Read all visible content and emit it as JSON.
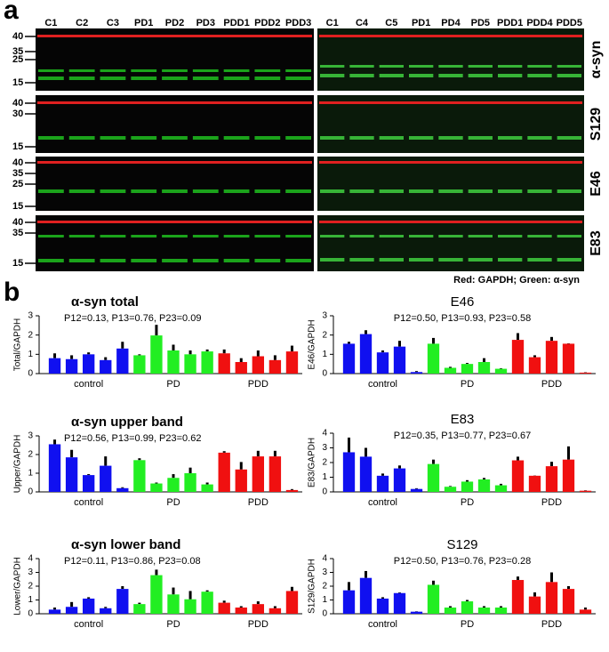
{
  "panel_labels": [
    "a",
    "b"
  ],
  "blot_panel": {
    "lanes_left": [
      "C1",
      "C2",
      "C3",
      "PD1",
      "PD2",
      "PD3",
      "PDD1",
      "PDD2",
      "PDD3"
    ],
    "lanes_right": [
      "C1",
      "C4",
      "C5",
      "PD1",
      "PD4",
      "PD5",
      "PDD1",
      "PDD4",
      "PDD5"
    ],
    "blots": [
      {
        "label": "α-syn",
        "markers": [
          40,
          35,
          25,
          15
        ]
      },
      {
        "label": "S129",
        "markers": [
          40,
          30,
          15
        ]
      },
      {
        "label": "E46",
        "markers": [
          40,
          35,
          25,
          15
        ]
      },
      {
        "label": "E83",
        "markers": [
          40,
          35,
          15
        ]
      }
    ],
    "caption": "Red: GAPDH; Green: α-syn"
  },
  "chart_data": [
    {
      "type": "bar",
      "title": "α-syn total",
      "subtitle": "P12=0.13, P13=0.76, P23=0.09",
      "ylabel": "Total/GAPDH",
      "ylim": [
        0,
        3
      ],
      "yticks": [
        0,
        1,
        2,
        3
      ],
      "groups": [
        {
          "label": "control",
          "color": "#1010f0",
          "values": [
            0.8,
            0.75,
            1.0,
            0.7,
            1.3
          ],
          "errors": [
            0.25,
            0.2,
            0.1,
            0.15,
            0.35
          ]
        },
        {
          "label": "PD",
          "color": "#22ee22",
          "values": [
            0.95,
            1.98,
            1.2,
            1.0,
            1.15
          ],
          "errors": [
            0.05,
            0.55,
            0.3,
            0.2,
            0.1
          ]
        },
        {
          "label": "PDD",
          "color": "#f01010",
          "values": [
            1.05,
            0.6,
            0.9,
            0.7,
            1.15
          ],
          "errors": [
            0.2,
            0.2,
            0.3,
            0.25,
            0.3
          ]
        }
      ]
    },
    {
      "type": "bar",
      "title": "α-syn  upper band",
      "subtitle": "P12=0.56, P13=0.99, P23=0.62",
      "ylabel": "Upper/GAPDH",
      "ylim": [
        0,
        3
      ],
      "yticks": [
        0,
        1,
        2,
        3
      ],
      "groups": [
        {
          "label": "control",
          "color": "#1010f0",
          "values": [
            2.55,
            1.85,
            0.9,
            1.4,
            0.2
          ],
          "errors": [
            0.25,
            0.4,
            0.05,
            0.5,
            0.05
          ]
        },
        {
          "label": "PD",
          "color": "#22ee22",
          "values": [
            1.7,
            0.45,
            0.75,
            1.0,
            0.4
          ],
          "errors": [
            0.1,
            0.05,
            0.2,
            0.3,
            0.1
          ]
        },
        {
          "label": "PDD",
          "color": "#f01010",
          "values": [
            2.1,
            1.2,
            1.9,
            1.9,
            0.1
          ],
          "errors": [
            0.08,
            0.4,
            0.3,
            0.3,
            0.05
          ]
        }
      ]
    },
    {
      "type": "bar",
      "title": "α-syn  lower band",
      "subtitle": "P12=0.11, P13=0.86, P23=0.08",
      "ylabel": "Lower/GAPDH",
      "ylim": [
        0,
        4
      ],
      "yticks": [
        0,
        1,
        2,
        3,
        4
      ],
      "groups": [
        {
          "label": "control",
          "color": "#1010f0",
          "values": [
            0.3,
            0.5,
            1.1,
            0.4,
            1.8
          ],
          "errors": [
            0.15,
            0.35,
            0.1,
            0.1,
            0.2
          ]
        },
        {
          "label": "PD",
          "color": "#22ee22",
          "values": [
            0.7,
            2.8,
            1.4,
            1.05,
            1.6
          ],
          "errors": [
            0.1,
            0.4,
            0.5,
            0.6,
            0.1
          ]
        },
        {
          "label": "PDD",
          "color": "#f01010",
          "values": [
            0.8,
            0.45,
            0.7,
            0.4,
            1.65
          ],
          "errors": [
            0.15,
            0.1,
            0.2,
            0.15,
            0.3
          ]
        }
      ]
    },
    {
      "type": "bar",
      "title": "E46",
      "subtitle": "P12=0.50, P13=0.93, P23=0.58",
      "ylabel": "E46/GAPDH",
      "ylim": [
        0,
        3
      ],
      "yticks": [
        0,
        1,
        2,
        3
      ],
      "groups": [
        {
          "label": "control",
          "color": "#1010f0",
          "values": [
            1.55,
            2.05,
            1.1,
            1.4,
            0.08
          ],
          "errors": [
            0.1,
            0.2,
            0.1,
            0.3,
            0.05
          ]
        },
        {
          "label": "PD",
          "color": "#22ee22",
          "values": [
            1.55,
            0.3,
            0.5,
            0.6,
            0.25
          ],
          "errors": [
            0.3,
            0.05,
            0.05,
            0.2,
            0.03
          ]
        },
        {
          "label": "PDD",
          "color": "#f01010",
          "values": [
            1.75,
            0.85,
            1.7,
            1.55,
            0.05
          ],
          "errors": [
            0.35,
            0.1,
            0.2,
            0.02,
            0.02
          ]
        }
      ]
    },
    {
      "type": "bar",
      "title": "E83",
      "subtitle": "P12=0.35, P13=0.77, P23=0.67",
      "ylabel": "E83/GAPDH",
      "ylim": [
        0,
        4
      ],
      "yticks": [
        0,
        1,
        2,
        3,
        4
      ],
      "groups": [
        {
          "label": "control",
          "color": "#1010f0",
          "values": [
            2.7,
            2.4,
            1.1,
            1.6,
            0.2
          ],
          "errors": [
            1.0,
            0.6,
            0.15,
            0.2,
            0.05
          ]
        },
        {
          "label": "PD",
          "color": "#22ee22",
          "values": [
            1.9,
            0.35,
            0.7,
            0.85,
            0.45
          ],
          "errors": [
            0.3,
            0.05,
            0.1,
            0.1,
            0.1
          ]
        },
        {
          "label": "PDD",
          "color": "#f01010",
          "values": [
            2.15,
            1.1,
            1.75,
            2.2,
            0.08
          ],
          "errors": [
            0.25,
            0.02,
            0.3,
            0.9,
            0.03
          ]
        }
      ]
    },
    {
      "type": "bar",
      "title": "S129",
      "subtitle": "P12=0.50, P13=0.76, P23=0.28",
      "ylabel": "S129/GAPDH",
      "ylim": [
        0,
        4
      ],
      "yticks": [
        0,
        1,
        2,
        3,
        4
      ],
      "groups": [
        {
          "label": "control",
          "color": "#1010f0",
          "values": [
            1.7,
            2.6,
            1.1,
            1.5,
            0.15
          ],
          "errors": [
            0.6,
            0.5,
            0.1,
            0.05,
            0.03
          ]
        },
        {
          "label": "PD",
          "color": "#22ee22",
          "values": [
            2.1,
            0.45,
            0.9,
            0.45,
            0.45
          ],
          "errors": [
            0.3,
            0.1,
            0.1,
            0.1,
            0.1
          ]
        },
        {
          "label": "PDD",
          "color": "#f01010",
          "values": [
            2.45,
            1.25,
            2.3,
            1.8,
            0.3
          ],
          "errors": [
            0.25,
            0.3,
            0.7,
            0.2,
            0.15
          ]
        }
      ]
    }
  ]
}
